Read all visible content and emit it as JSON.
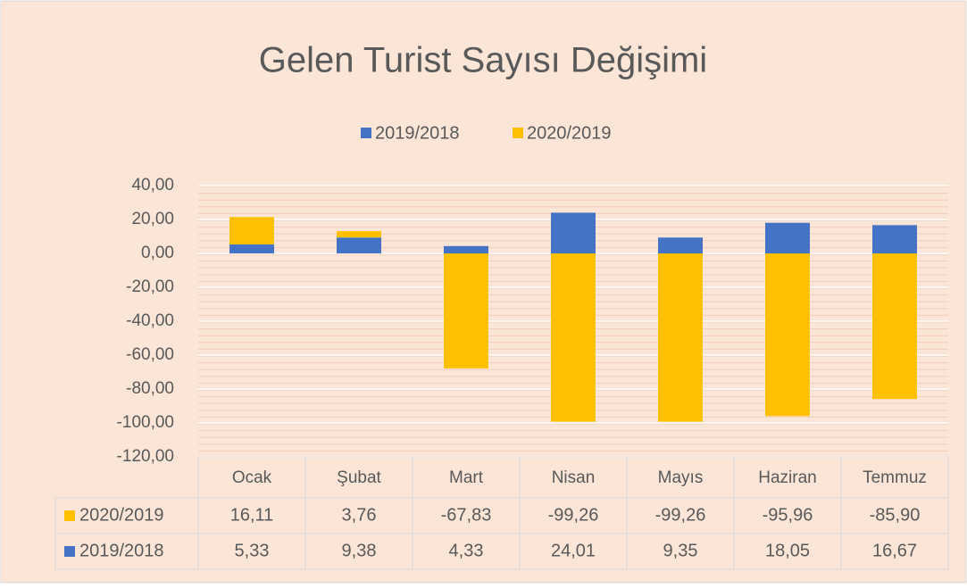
{
  "chart_data": {
    "type": "bar",
    "stacked": true,
    "title": "Gelen Turist  Sayısı Değişimi",
    "categories": [
      "Ocak",
      "Şubat",
      "Mart",
      "Nisan",
      "Mayıs",
      "Haziran",
      "Temmuz"
    ],
    "series": [
      {
        "name": "2019/2018",
        "color": "#4472c4",
        "values": [
          5.33,
          9.38,
          4.33,
          24.01,
          9.35,
          18.05,
          16.67
        ],
        "value_labels": [
          "5,33",
          "9,38",
          "4,33",
          "24,01",
          "9,35",
          "18,05",
          "16,67"
        ]
      },
      {
        "name": "2020/2019",
        "color": "#ffc000",
        "values": [
          16.11,
          3.76,
          -67.83,
          -99.26,
          -99.26,
          -95.96,
          -85.9
        ],
        "value_labels": [
          "16,11",
          "3,76",
          "-67,83",
          "-99,26",
          "-99,26",
          "-95,96",
          "-85,90"
        ]
      }
    ],
    "ylim": [
      -120,
      40
    ],
    "yticks": [
      {
        "value": -120,
        "label": "-120,00"
      },
      {
        "value": -100,
        "label": "-100,00"
      },
      {
        "value": -80,
        "label": "-80,00"
      },
      {
        "value": -60,
        "label": "-60,00"
      },
      {
        "value": -40,
        "label": "-40,00"
      },
      {
        "value": -20,
        "label": "-20,00"
      },
      {
        "value": 0,
        "label": "0,00"
      },
      {
        "value": 20,
        "label": "20,00"
      },
      {
        "value": 40,
        "label": "40,00"
      }
    ],
    "grid": true,
    "legend": "top",
    "data_table": true
  }
}
